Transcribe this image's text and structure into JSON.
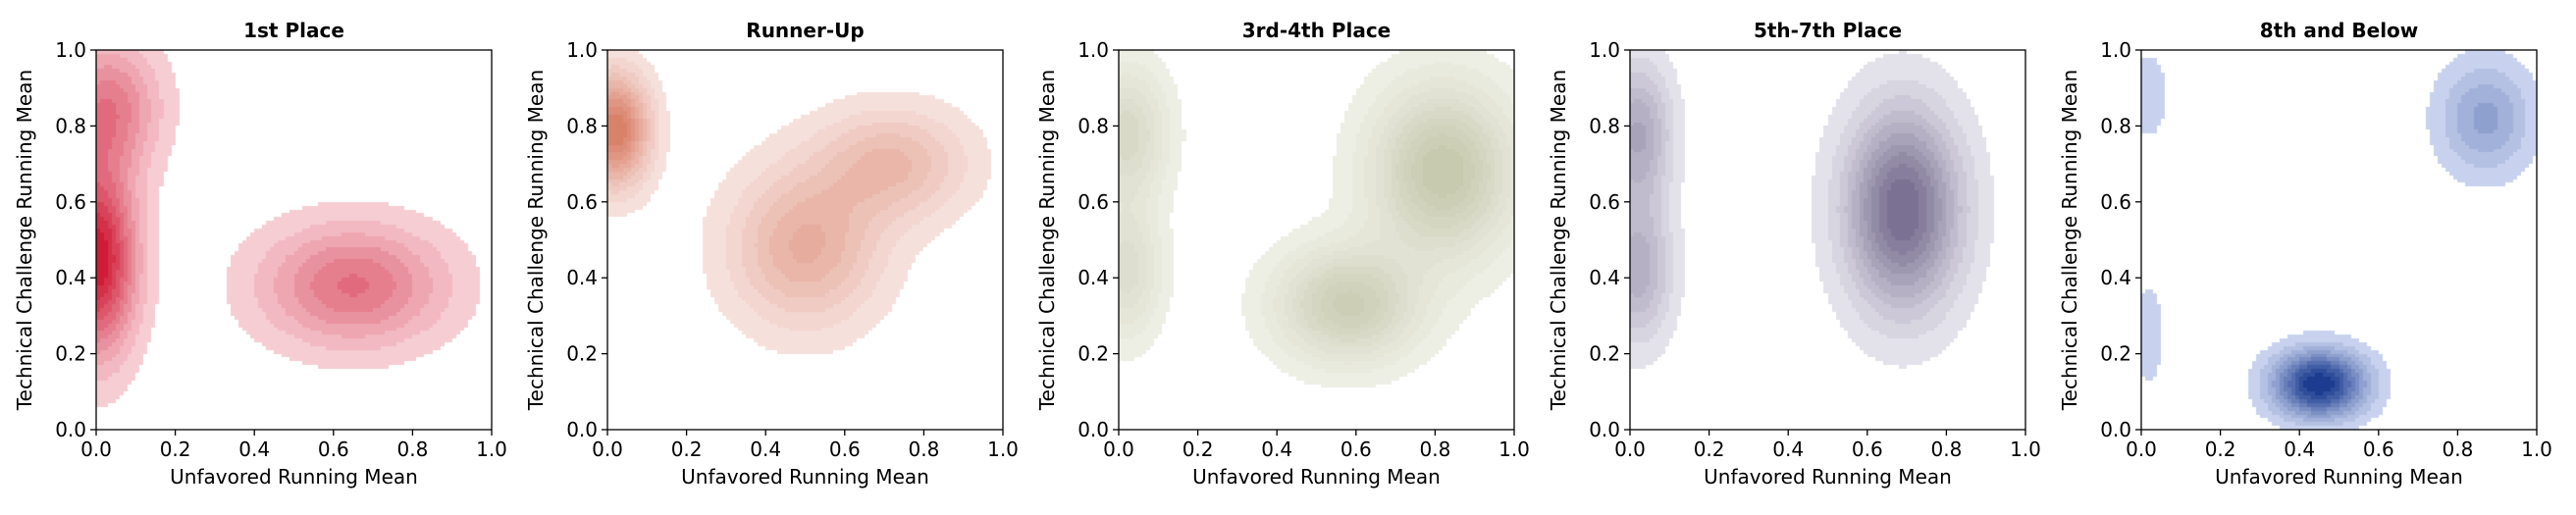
{
  "chart_data": [
    {
      "type": "contour",
      "title": "1st Place",
      "xlabel": "Unfavored Running Mean",
      "ylabel": "Technical Challenge Running Mean",
      "xlim": [
        0,
        1
      ],
      "ylim": [
        0,
        1
      ],
      "xticks": [
        "0.0",
        "0.2",
        "0.4",
        "0.6",
        "0.8",
        "1.0"
      ],
      "yticks": [
        "0.0",
        "0.2",
        "0.4",
        "0.6",
        "0.8",
        "1.0"
      ],
      "colormap": [
        "#f6cdd3",
        "#d01c36"
      ],
      "density_peaks": [
        {
          "x": 0.0,
          "y": 0.45,
          "weight": 1.0,
          "sx": 0.07,
          "sy": 0.17
        },
        {
          "x": 0.65,
          "y": 0.38,
          "weight": 0.55,
          "sx": 0.16,
          "sy": 0.11
        },
        {
          "x": 0.03,
          "y": 0.85,
          "weight": 0.5,
          "sx": 0.09,
          "sy": 0.12
        }
      ]
    },
    {
      "type": "contour",
      "title": "Runner-Up",
      "xlabel": "Unfavored Running Mean",
      "ylabel": "Technical Challenge Running Mean",
      "xlim": [
        0,
        1
      ],
      "ylim": [
        0,
        1
      ],
      "xticks": [
        "0.0",
        "0.2",
        "0.4",
        "0.6",
        "0.8",
        "1.0"
      ],
      "yticks": [
        "0.0",
        "0.2",
        "0.4",
        "0.6",
        "0.8",
        "1.0"
      ],
      "colormap": [
        "#f6e0dc",
        "#d9826a"
      ],
      "density_peaks": [
        {
          "x": 0.02,
          "y": 0.79,
          "weight": 1.0,
          "sx": 0.06,
          "sy": 0.1
        },
        {
          "x": 0.5,
          "y": 0.48,
          "weight": 0.55,
          "sx": 0.13,
          "sy": 0.14
        },
        {
          "x": 0.72,
          "y": 0.7,
          "weight": 0.45,
          "sx": 0.13,
          "sy": 0.1
        }
      ]
    },
    {
      "type": "contour",
      "title": "3rd-4th Place",
      "xlabel": "Unfavored Running Mean",
      "ylabel": "Technical Challenge Running Mean",
      "xlim": [
        0,
        1
      ],
      "ylim": [
        0,
        1
      ],
      "xticks": [
        "0.0",
        "0.2",
        "0.4",
        "0.6",
        "0.8",
        "1.0"
      ],
      "yticks": [
        "0.0",
        "0.2",
        "0.4",
        "0.6",
        "0.8",
        "1.0"
      ],
      "colormap": [
        "#edeee4",
        "#c8cab0"
      ],
      "density_peaks": [
        {
          "x": 0.82,
          "y": 0.68,
          "weight": 1.0,
          "sx": 0.12,
          "sy": 0.15
        },
        {
          "x": 0.58,
          "y": 0.33,
          "weight": 0.85,
          "sx": 0.12,
          "sy": 0.1
        },
        {
          "x": 0.02,
          "y": 0.78,
          "weight": 0.6,
          "sx": 0.07,
          "sy": 0.12
        },
        {
          "x": 0.02,
          "y": 0.42,
          "weight": 0.5,
          "sx": 0.06,
          "sy": 0.12
        }
      ]
    },
    {
      "type": "contour",
      "title": "5th-7th Place",
      "xlabel": "Unfavored Running Mean",
      "ylabel": "Technical Challenge Running Mean",
      "xlim": [
        0,
        1
      ],
      "ylim": [
        0,
        1
      ],
      "xticks": [
        "0.0",
        "0.2",
        "0.4",
        "0.6",
        "0.8",
        "1.0"
      ],
      "yticks": [
        "0.0",
        "0.2",
        "0.4",
        "0.6",
        "0.8",
        "1.0"
      ],
      "colormap": [
        "#e3e1ea",
        "#7b7293"
      ],
      "density_peaks": [
        {
          "x": 0.69,
          "y": 0.58,
          "weight": 1.0,
          "sx": 0.1,
          "sy": 0.18
        },
        {
          "x": 0.02,
          "y": 0.78,
          "weight": 0.55,
          "sx": 0.06,
          "sy": 0.13
        },
        {
          "x": 0.02,
          "y": 0.42,
          "weight": 0.5,
          "sx": 0.06,
          "sy": 0.13
        }
      ]
    },
    {
      "type": "contour",
      "title": "8th and Below",
      "xlabel": "Unfavored Running Mean",
      "ylabel": "Technical Challenge Running Mean",
      "xlim": [
        0,
        1
      ],
      "ylim": [
        0,
        1
      ],
      "xticks": [
        "0.0",
        "0.2",
        "0.4",
        "0.6",
        "0.8",
        "1.0"
      ],
      "yticks": [
        "0.0",
        "0.2",
        "0.4",
        "0.6",
        "0.8",
        "1.0"
      ],
      "colormap": [
        "#c8d2ee",
        "#1b3c8f"
      ],
      "density_peaks": [
        {
          "x": 0.45,
          "y": 0.12,
          "weight": 1.0,
          "sx": 0.08,
          "sy": 0.06
        },
        {
          "x": 0.87,
          "y": 0.82,
          "weight": 0.38,
          "sx": 0.08,
          "sy": 0.1
        },
        {
          "x": 0.02,
          "y": 0.88,
          "weight": 0.12,
          "sx": 0.04,
          "sy": 0.1
        },
        {
          "x": 0.02,
          "y": 0.25,
          "weight": 0.1,
          "sx": 0.04,
          "sy": 0.14
        }
      ]
    }
  ]
}
